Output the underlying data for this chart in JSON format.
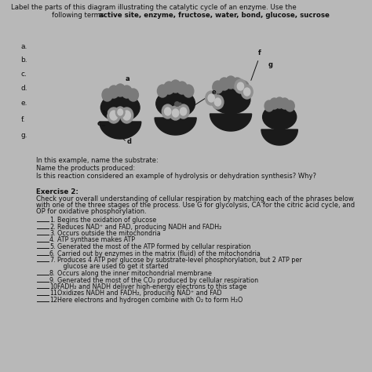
{
  "bg_color": "#b8b8b8",
  "title_line1": "Label the parts of this diagram illustrating the catalytic cycle of an enzyme. Use the",
  "title_line2_normal": "following terms: ",
  "title_line2_bold": "active site, enzyme, fructose, water, bond, glucose, sucrose",
  "labels_left": [
    "a.",
    "b.",
    "c.",
    "d.",
    "e.",
    "f.",
    "g."
  ],
  "questions": [
    "In this example, name the substrate:",
    "Name the products produced:",
    "Is this reaction considered an example of hydrolysis or dehydration synthesis? Why?"
  ],
  "exercise2_title": "Exercise 2:",
  "exercise2_intro1": "Check your overall understanding of cellular respiration by matching each of the phrases below",
  "exercise2_intro2": "with one of the three stages of the process. Use G for glycolysis, CA for the citric acid cycle, and",
  "exercise2_intro3": "OP for oxidative phosphorylation.",
  "exercise2_items": [
    [
      "1.",
      "Begins the oxidation of glucose"
    ],
    [
      "2.",
      "Reduces NAD⁺ and FAD, producing NADH and FADH₂"
    ],
    [
      "3.",
      "Occurs outside the mitochondria"
    ],
    [
      "4.",
      "ATP synthase makes ATP"
    ],
    [
      "5.",
      "Generated the most of the ATP formed by cellular respiration"
    ],
    [
      "6.",
      "Carried out by enzymes in the matrix (fluid) of the mitochondria"
    ],
    [
      "7.",
      "Produces 4 ATP per glucose by substrate-level phosphorylation, but 2 ATP per"
    ],
    [
      "",
      "   glucose are used to get it started"
    ],
    [
      "8.",
      "Occurs along the inner mitochondrial membrane"
    ],
    [
      "9.",
      "Generated the most of the CO₂ produced by cellular respiration"
    ],
    [
      "10.",
      "FADH₂ and NADH deliver high-energy electrons to this stage"
    ],
    [
      "11.",
      "Oxidizes NADH and FADH₂, producing NAD⁺ and FAD"
    ],
    [
      "12.",
      "Here electrons and hydrogen combine with O₂ to form H₂O"
    ]
  ],
  "item_has_blank": [
    true,
    true,
    true,
    true,
    true,
    true,
    true,
    false,
    true,
    true,
    true,
    true,
    true
  ],
  "text_color": "#111111",
  "bowl_color": "#1a1a1a",
  "knob_color": "#7a7a7a",
  "substrate_color": "#909090",
  "substrate_inner": "#c0c0c0"
}
